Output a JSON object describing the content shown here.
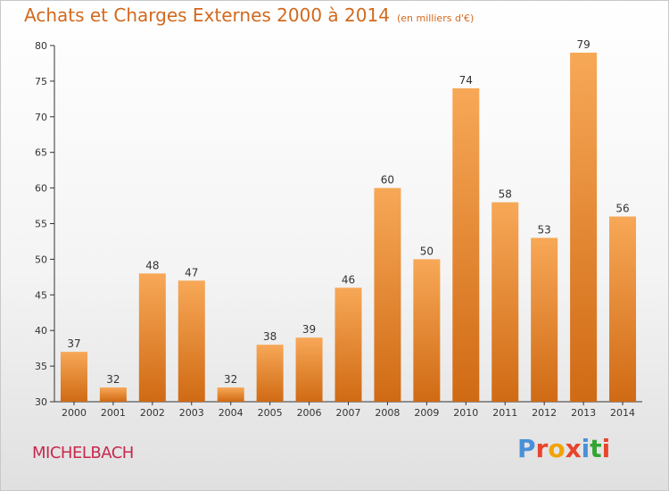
{
  "header": {
    "title": "Achats et Charges Externes 2000 à 2014",
    "subtitle": "(en milliers d'€)"
  },
  "footer": {
    "commune": "MICHELBACH",
    "logo_text": "Proxiti"
  },
  "colors": {
    "bar_top": "#f7a857",
    "bar_bottom": "#d06a14",
    "title": "#d2691e",
    "commune": "#c8284d",
    "logo_letters": [
      "#4a90d9",
      "#e8452c",
      "#f2a300",
      "#e8452c",
      "#4a90d9",
      "#33a532",
      "#e8452c"
    ]
  },
  "chart_data": {
    "type": "bar",
    "title": "Achats et Charges Externes 2000 à 2014",
    "subtitle": "(en milliers d'€)",
    "categories": [
      "2000",
      "2001",
      "2002",
      "2003",
      "2004",
      "2005",
      "2006",
      "2007",
      "2008",
      "2009",
      "2010",
      "2011",
      "2012",
      "2013",
      "2014"
    ],
    "values": [
      37,
      32,
      48,
      47,
      32,
      38,
      39,
      46,
      60,
      50,
      74,
      58,
      53,
      79,
      56
    ],
    "ylim": [
      30,
      80
    ],
    "yticks": [
      30,
      35,
      40,
      45,
      50,
      55,
      60,
      65,
      70,
      75,
      80
    ],
    "grid": false,
    "legend": "none"
  }
}
